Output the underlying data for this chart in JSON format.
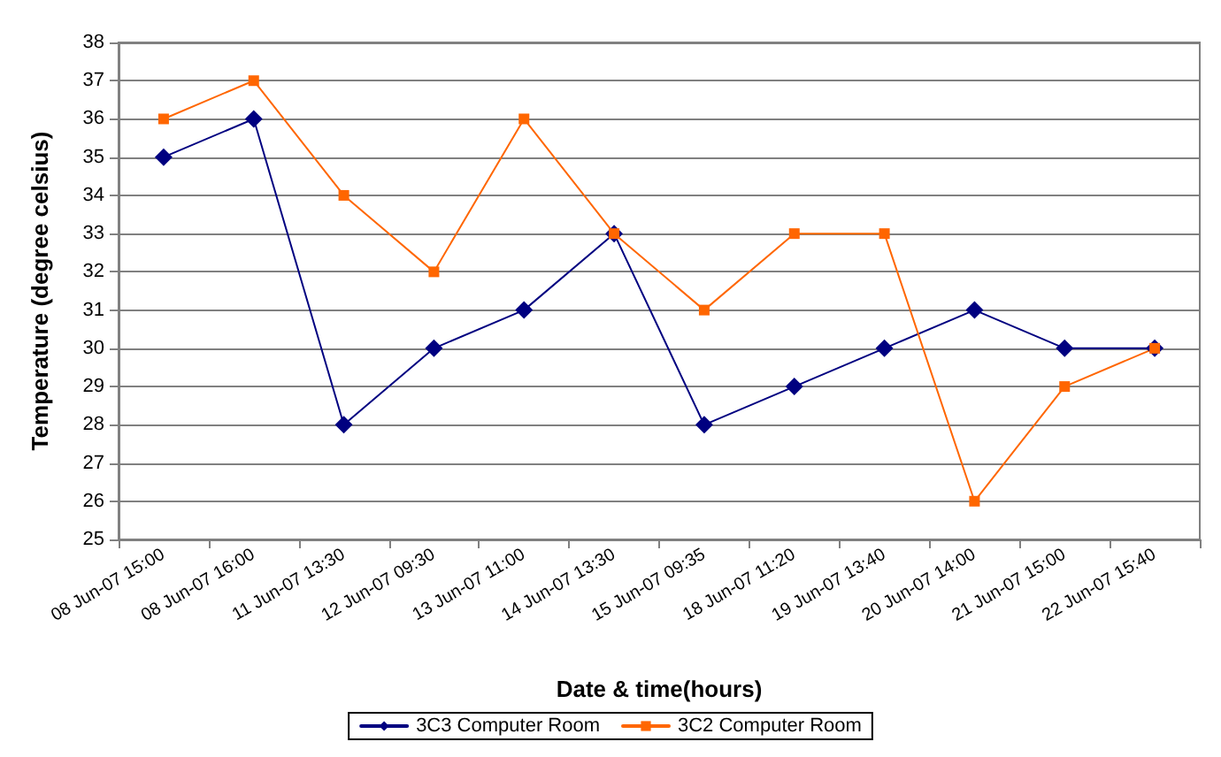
{
  "chart_data": {
    "type": "line",
    "xlabel": "Date & time(hours)",
    "ylabel": "Temperature (degree celsius)",
    "categories": [
      "08 Jun-07 15:00",
      "08 Jun-07 16:00",
      "11 Jun-07 13:30",
      "12 Jun-07 09:30",
      "13 Jun-07 11:00",
      "14 Jun-07 13:30",
      "15 Jun-07 09:35",
      "18 Jun-07 11:20",
      "19 Jun-07 13:40",
      "20 Jun-07 14:00",
      "21 Jun-07 15:00",
      "22 Jun-07 15:40"
    ],
    "series": [
      {
        "name": "3C3 Computer Room",
        "color": "#000080",
        "marker": "diamond",
        "values": [
          35,
          36,
          28,
          30,
          31,
          33,
          28,
          29,
          30,
          31,
          30,
          30
        ]
      },
      {
        "name": "3C2 Computer Room",
        "color": "#ff6600",
        "marker": "square",
        "values": [
          36,
          37,
          34,
          32,
          36,
          33,
          31,
          33,
          33,
          26,
          29,
          30
        ]
      }
    ],
    "ylim": [
      25,
      38
    ],
    "yticks": [
      25,
      26,
      27,
      28,
      29,
      30,
      31,
      32,
      33,
      34,
      35,
      36,
      37,
      38
    ],
    "grid": "y",
    "legend": "bottom",
    "line_style": "solid"
  }
}
